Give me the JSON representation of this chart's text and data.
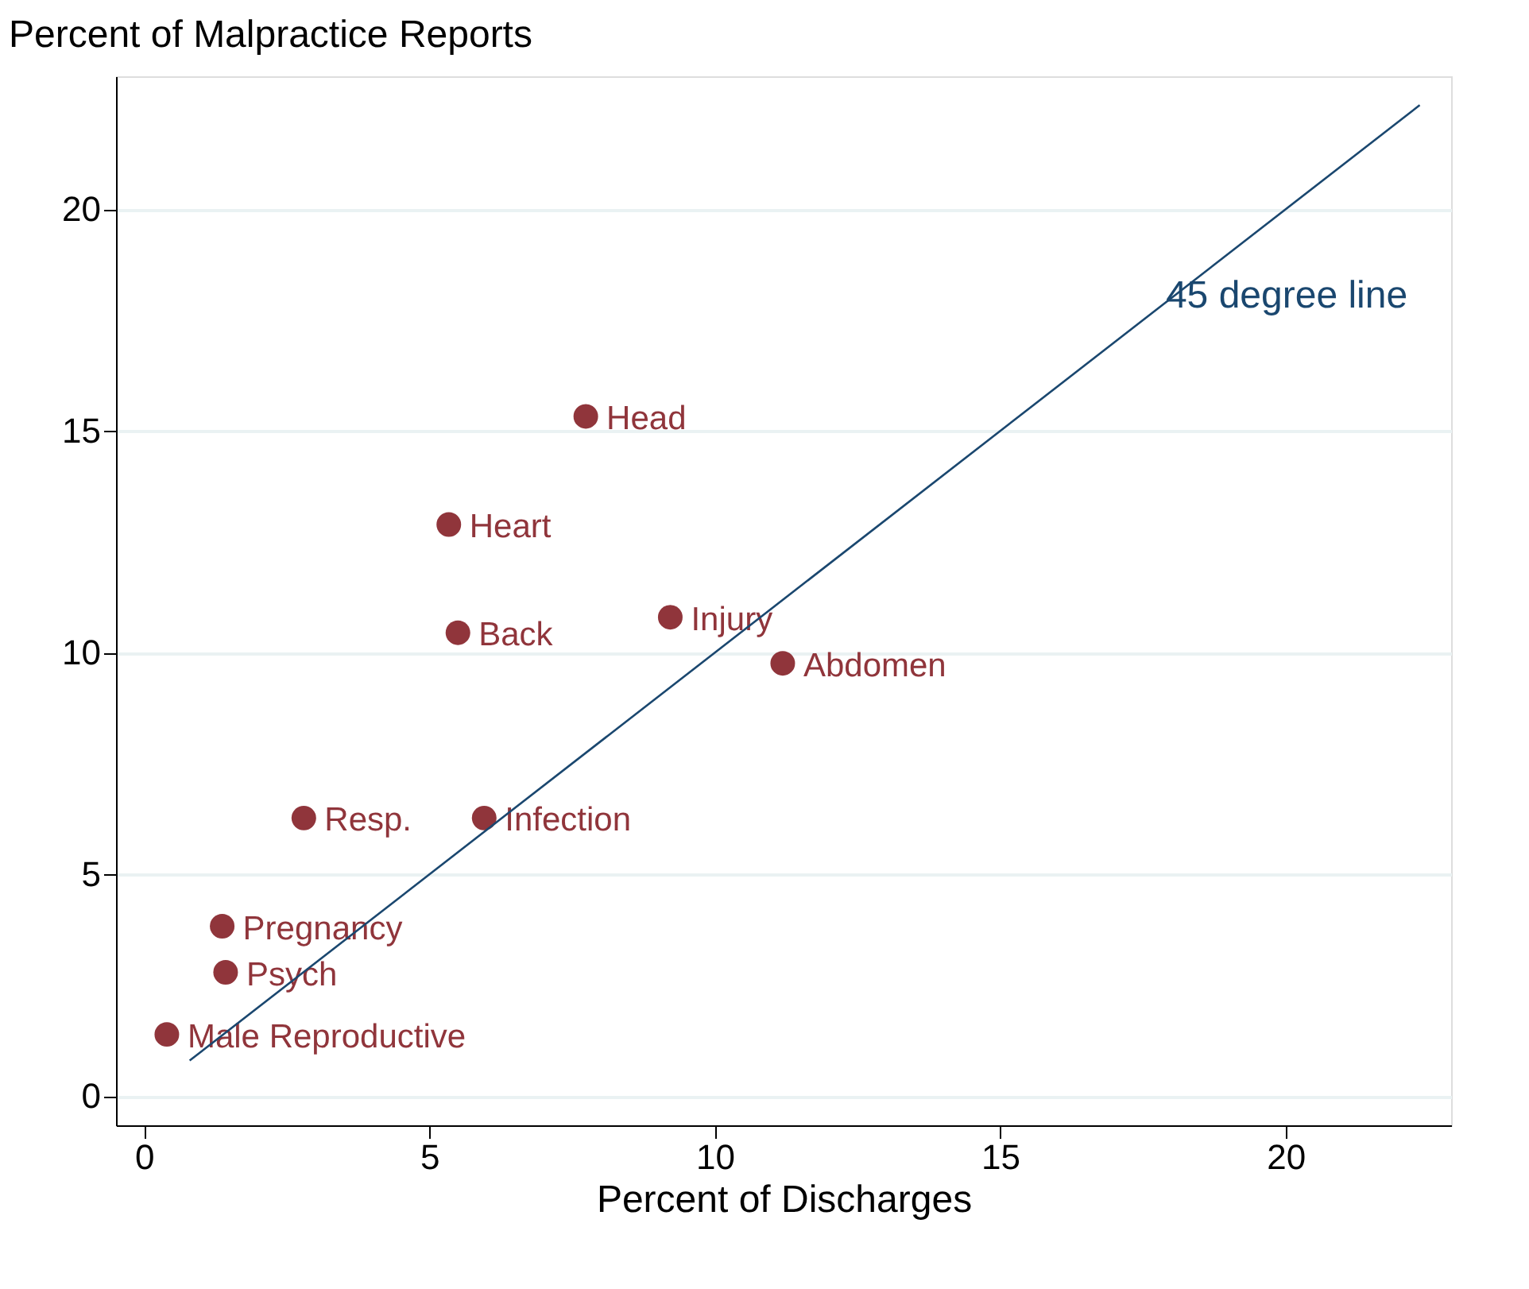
{
  "chart_data": {
    "type": "scatter",
    "xlabel": "Percent of Discharges",
    "ylabel": "Percent of Malpractice Reports",
    "xlim": [
      -0.49,
      22.9
    ],
    "ylim": [
      -0.66,
      23.0
    ],
    "xticks": [
      0,
      5,
      10,
      15,
      20
    ],
    "yticks": [
      0,
      5,
      10,
      15,
      20
    ],
    "grid": "y",
    "series": [
      {
        "marker": "circle",
        "color": "#90353b",
        "x": [
          7.74,
          5.34,
          5.5,
          9.22,
          11.19,
          2.8,
          5.96,
          1.37,
          1.43,
          0.4
        ],
        "values": [
          15.33,
          12.89,
          10.45,
          10.8,
          9.76,
          6.27,
          6.27,
          3.83,
          2.79,
          1.39
        ],
        "value_labels": [
          "Head",
          "Heart",
          "Back",
          "Injury",
          "Abdomen",
          "Resp.",
          "Infection",
          "Pregnancy",
          "Psych",
          "Male Reproductive"
        ]
      },
      {
        "type": "line",
        "name": "45 degree line",
        "color": "#1a476f",
        "line_style": "solid",
        "x": [
          0.8,
          22.35
        ],
        "values": [
          0.8,
          22.35
        ]
      }
    ]
  }
}
